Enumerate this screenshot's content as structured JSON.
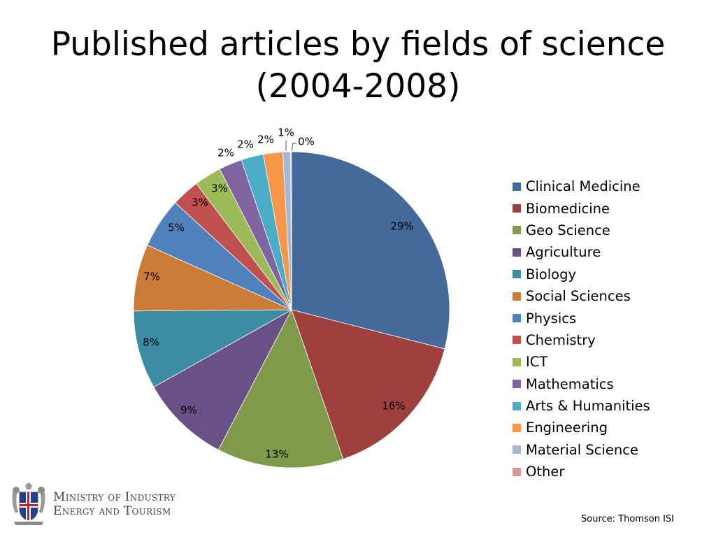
{
  "title": {
    "line1": "Published articles by fields of science",
    "line2": "(2004-2008)"
  },
  "chart_data": {
    "type": "pie",
    "title": "Published articles by fields of science (2004-2008)",
    "start_angle": "12 o'clock, clockwise",
    "legend_position": "right",
    "slices": [
      {
        "label": "Clinical Medicine",
        "value": 29.3,
        "display": "29%",
        "color": "#44699B"
      },
      {
        "label": "Biomedicine",
        "value": 15.9,
        "display": "16%",
        "color": "#9E413E"
      },
      {
        "label": "Geo Science",
        "value": 13.1,
        "display": "13%",
        "color": "#7F9A48"
      },
      {
        "label": "Agriculture",
        "value": 9.3,
        "display": "9%",
        "color": "#695185"
      },
      {
        "label": "Biology",
        "value": 8.1,
        "display": "8%",
        "color": "#3C8DA3"
      },
      {
        "label": "Social Sciences",
        "value": 6.9,
        "display": "7%",
        "color": "#CC7B38"
      },
      {
        "label": "Physics",
        "value": 5.2,
        "display": "5%",
        "color": "#4F81BD"
      },
      {
        "label": "Chemistry",
        "value": 2.9,
        "display": "3%",
        "color": "#C0504D"
      },
      {
        "label": "ICT",
        "value": 2.8,
        "display": "3%",
        "color": "#9BBB59"
      },
      {
        "label": "Mathematics",
        "value": 2.4,
        "display": "2%",
        "color": "#8064A2"
      },
      {
        "label": "Arts & Humanities",
        "value": 2.3,
        "display": "2%",
        "color": "#4BACC6"
      },
      {
        "label": "Engineering",
        "value": 2.0,
        "display": "2%",
        "color": "#F79646"
      },
      {
        "label": "Material Science",
        "value": 0.8,
        "display": "1%",
        "color": "#A5B7D9"
      },
      {
        "label": "Other",
        "value": 0.1,
        "display": "0%",
        "color": "#D99694"
      }
    ]
  },
  "logo": {
    "line1": "Ministry of Industry",
    "line2": "Energy and Tourism"
  },
  "source": "Source: Thomson ISI"
}
